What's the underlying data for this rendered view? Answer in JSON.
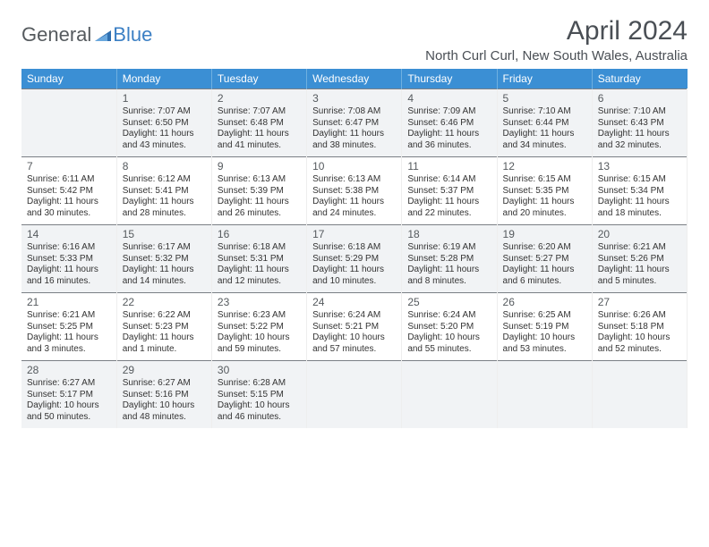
{
  "brand": {
    "general": "General",
    "blue": "Blue"
  },
  "title": {
    "month": "April 2024",
    "location": "North Curl Curl, New South Wales, Australia"
  },
  "colors": {
    "header_bg": "#3b8fd4",
    "header_text": "#ffffff",
    "alt_row_bg": "#f1f3f5",
    "week_border": "#7a7f85",
    "logo_gray": "#555a5e",
    "logo_blue": "#3b7fc4"
  },
  "weekdays": [
    "Sunday",
    "Monday",
    "Tuesday",
    "Wednesday",
    "Thursday",
    "Friday",
    "Saturday"
  ],
  "weeks": [
    [
      null,
      {
        "n": "1",
        "sr": "Sunrise: 7:07 AM",
        "ss": "Sunset: 6:50 PM",
        "d1": "Daylight: 11 hours",
        "d2": "and 43 minutes."
      },
      {
        "n": "2",
        "sr": "Sunrise: 7:07 AM",
        "ss": "Sunset: 6:48 PM",
        "d1": "Daylight: 11 hours",
        "d2": "and 41 minutes."
      },
      {
        "n": "3",
        "sr": "Sunrise: 7:08 AM",
        "ss": "Sunset: 6:47 PM",
        "d1": "Daylight: 11 hours",
        "d2": "and 38 minutes."
      },
      {
        "n": "4",
        "sr": "Sunrise: 7:09 AM",
        "ss": "Sunset: 6:46 PM",
        "d1": "Daylight: 11 hours",
        "d2": "and 36 minutes."
      },
      {
        "n": "5",
        "sr": "Sunrise: 7:10 AM",
        "ss": "Sunset: 6:44 PM",
        "d1": "Daylight: 11 hours",
        "d2": "and 34 minutes."
      },
      {
        "n": "6",
        "sr": "Sunrise: 7:10 AM",
        "ss": "Sunset: 6:43 PM",
        "d1": "Daylight: 11 hours",
        "d2": "and 32 minutes."
      }
    ],
    [
      {
        "n": "7",
        "sr": "Sunrise: 6:11 AM",
        "ss": "Sunset: 5:42 PM",
        "d1": "Daylight: 11 hours",
        "d2": "and 30 minutes."
      },
      {
        "n": "8",
        "sr": "Sunrise: 6:12 AM",
        "ss": "Sunset: 5:41 PM",
        "d1": "Daylight: 11 hours",
        "d2": "and 28 minutes."
      },
      {
        "n": "9",
        "sr": "Sunrise: 6:13 AM",
        "ss": "Sunset: 5:39 PM",
        "d1": "Daylight: 11 hours",
        "d2": "and 26 minutes."
      },
      {
        "n": "10",
        "sr": "Sunrise: 6:13 AM",
        "ss": "Sunset: 5:38 PM",
        "d1": "Daylight: 11 hours",
        "d2": "and 24 minutes."
      },
      {
        "n": "11",
        "sr": "Sunrise: 6:14 AM",
        "ss": "Sunset: 5:37 PM",
        "d1": "Daylight: 11 hours",
        "d2": "and 22 minutes."
      },
      {
        "n": "12",
        "sr": "Sunrise: 6:15 AM",
        "ss": "Sunset: 5:35 PM",
        "d1": "Daylight: 11 hours",
        "d2": "and 20 minutes."
      },
      {
        "n": "13",
        "sr": "Sunrise: 6:15 AM",
        "ss": "Sunset: 5:34 PM",
        "d1": "Daylight: 11 hours",
        "d2": "and 18 minutes."
      }
    ],
    [
      {
        "n": "14",
        "sr": "Sunrise: 6:16 AM",
        "ss": "Sunset: 5:33 PM",
        "d1": "Daylight: 11 hours",
        "d2": "and 16 minutes."
      },
      {
        "n": "15",
        "sr": "Sunrise: 6:17 AM",
        "ss": "Sunset: 5:32 PM",
        "d1": "Daylight: 11 hours",
        "d2": "and 14 minutes."
      },
      {
        "n": "16",
        "sr": "Sunrise: 6:18 AM",
        "ss": "Sunset: 5:31 PM",
        "d1": "Daylight: 11 hours",
        "d2": "and 12 minutes."
      },
      {
        "n": "17",
        "sr": "Sunrise: 6:18 AM",
        "ss": "Sunset: 5:29 PM",
        "d1": "Daylight: 11 hours",
        "d2": "and 10 minutes."
      },
      {
        "n": "18",
        "sr": "Sunrise: 6:19 AM",
        "ss": "Sunset: 5:28 PM",
        "d1": "Daylight: 11 hours",
        "d2": "and 8 minutes."
      },
      {
        "n": "19",
        "sr": "Sunrise: 6:20 AM",
        "ss": "Sunset: 5:27 PM",
        "d1": "Daylight: 11 hours",
        "d2": "and 6 minutes."
      },
      {
        "n": "20",
        "sr": "Sunrise: 6:21 AM",
        "ss": "Sunset: 5:26 PM",
        "d1": "Daylight: 11 hours",
        "d2": "and 5 minutes."
      }
    ],
    [
      {
        "n": "21",
        "sr": "Sunrise: 6:21 AM",
        "ss": "Sunset: 5:25 PM",
        "d1": "Daylight: 11 hours",
        "d2": "and 3 minutes."
      },
      {
        "n": "22",
        "sr": "Sunrise: 6:22 AM",
        "ss": "Sunset: 5:23 PM",
        "d1": "Daylight: 11 hours",
        "d2": "and 1 minute."
      },
      {
        "n": "23",
        "sr": "Sunrise: 6:23 AM",
        "ss": "Sunset: 5:22 PM",
        "d1": "Daylight: 10 hours",
        "d2": "and 59 minutes."
      },
      {
        "n": "24",
        "sr": "Sunrise: 6:24 AM",
        "ss": "Sunset: 5:21 PM",
        "d1": "Daylight: 10 hours",
        "d2": "and 57 minutes."
      },
      {
        "n": "25",
        "sr": "Sunrise: 6:24 AM",
        "ss": "Sunset: 5:20 PM",
        "d1": "Daylight: 10 hours",
        "d2": "and 55 minutes."
      },
      {
        "n": "26",
        "sr": "Sunrise: 6:25 AM",
        "ss": "Sunset: 5:19 PM",
        "d1": "Daylight: 10 hours",
        "d2": "and 53 minutes."
      },
      {
        "n": "27",
        "sr": "Sunrise: 6:26 AM",
        "ss": "Sunset: 5:18 PM",
        "d1": "Daylight: 10 hours",
        "d2": "and 52 minutes."
      }
    ],
    [
      {
        "n": "28",
        "sr": "Sunrise: 6:27 AM",
        "ss": "Sunset: 5:17 PM",
        "d1": "Daylight: 10 hours",
        "d2": "and 50 minutes."
      },
      {
        "n": "29",
        "sr": "Sunrise: 6:27 AM",
        "ss": "Sunset: 5:16 PM",
        "d1": "Daylight: 10 hours",
        "d2": "and 48 minutes."
      },
      {
        "n": "30",
        "sr": "Sunrise: 6:28 AM",
        "ss": "Sunset: 5:15 PM",
        "d1": "Daylight: 10 hours",
        "d2": "and 46 minutes."
      },
      null,
      null,
      null,
      null
    ]
  ]
}
